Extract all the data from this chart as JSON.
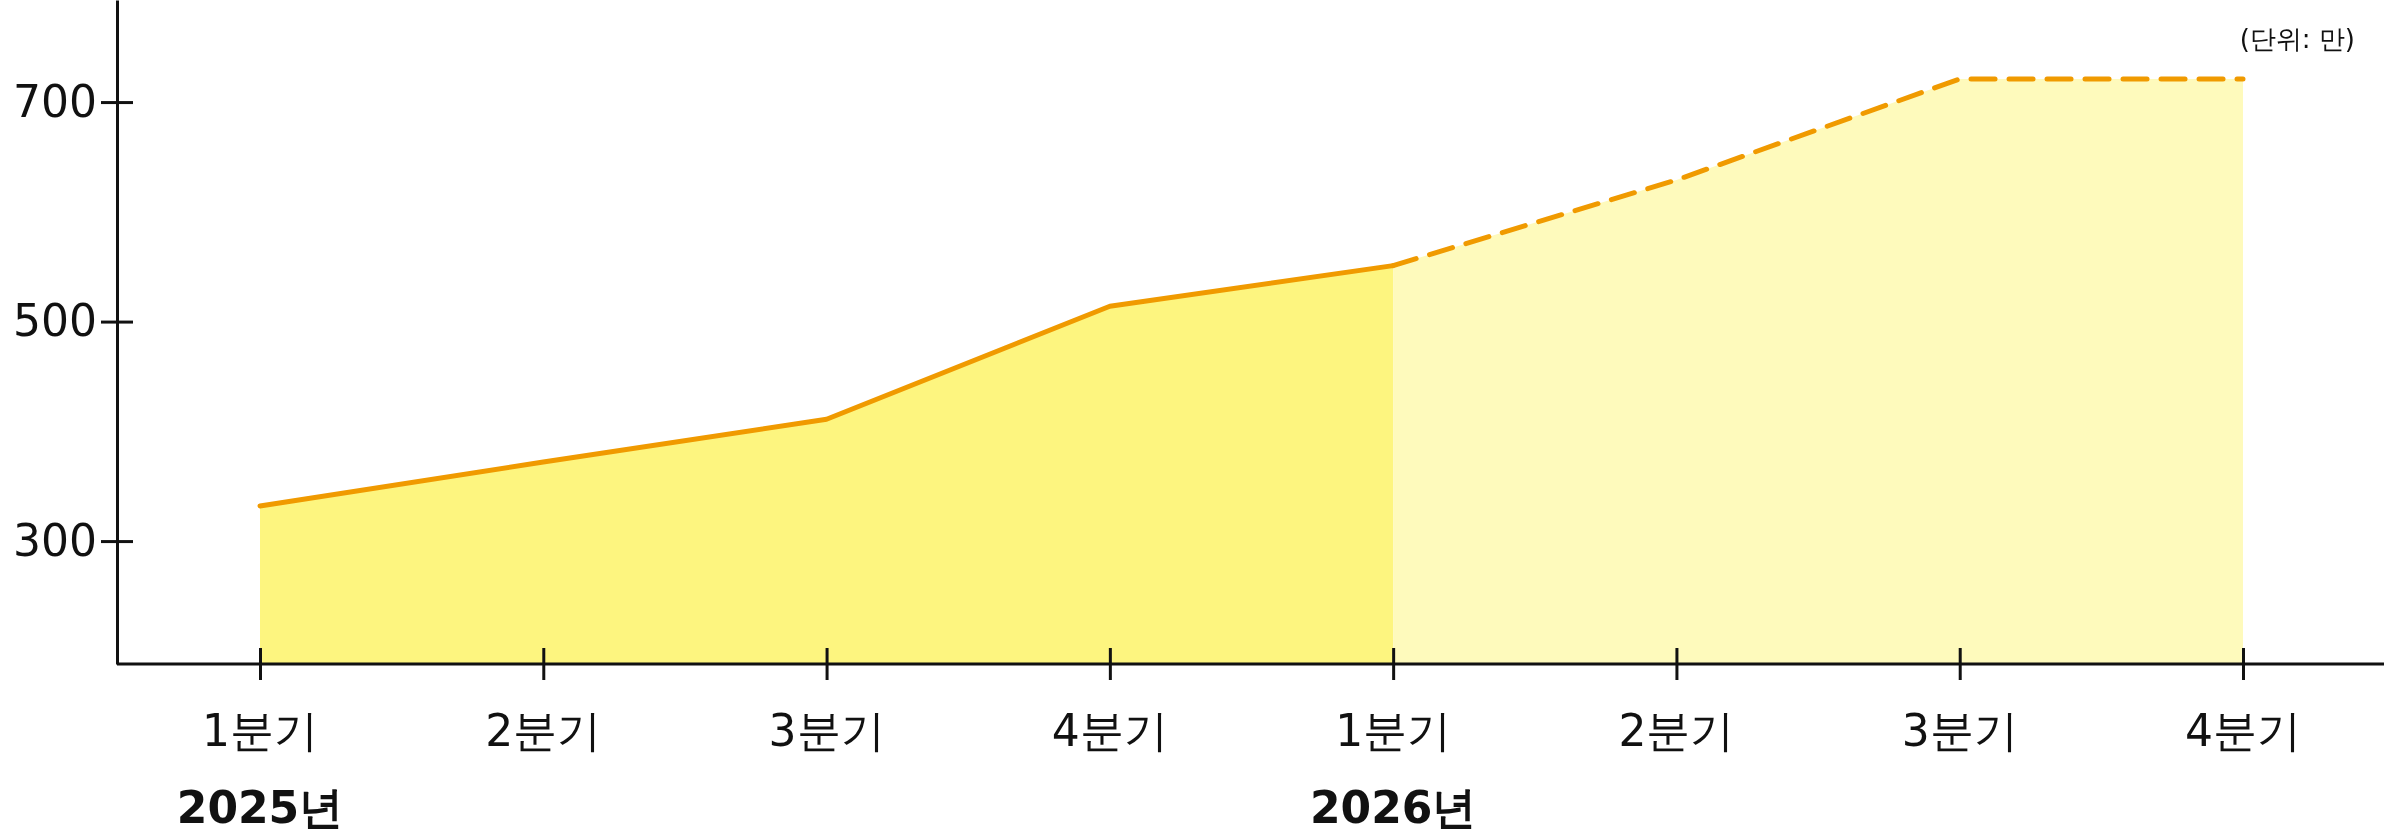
{
  "chart_data": {
    "type": "area",
    "categories": [
      "1분기\n2025년",
      "2분기",
      "3분기",
      "4분기",
      "1분기\n2026년",
      "2분기",
      "3분기",
      "4분기"
    ],
    "ylim": [
      188,
      793
    ],
    "yticks": [
      300,
      500,
      700
    ],
    "grid": false,
    "annotations": [
      "(단위: 만)"
    ],
    "colors": [
      "#fdf57f",
      "#fefabc"
    ],
    "series": [
      {
        "color": "#f09a00",
        "line_style": "solid",
        "values": [
          332,
          372,
          411,
          514,
          551,
          null,
          null,
          null
        ]
      },
      {
        "color": "#f09a00",
        "line_style": "dashed",
        "values": [
          null,
          null,
          null,
          null,
          551,
          629,
          721,
          721
        ]
      }
    ]
  }
}
